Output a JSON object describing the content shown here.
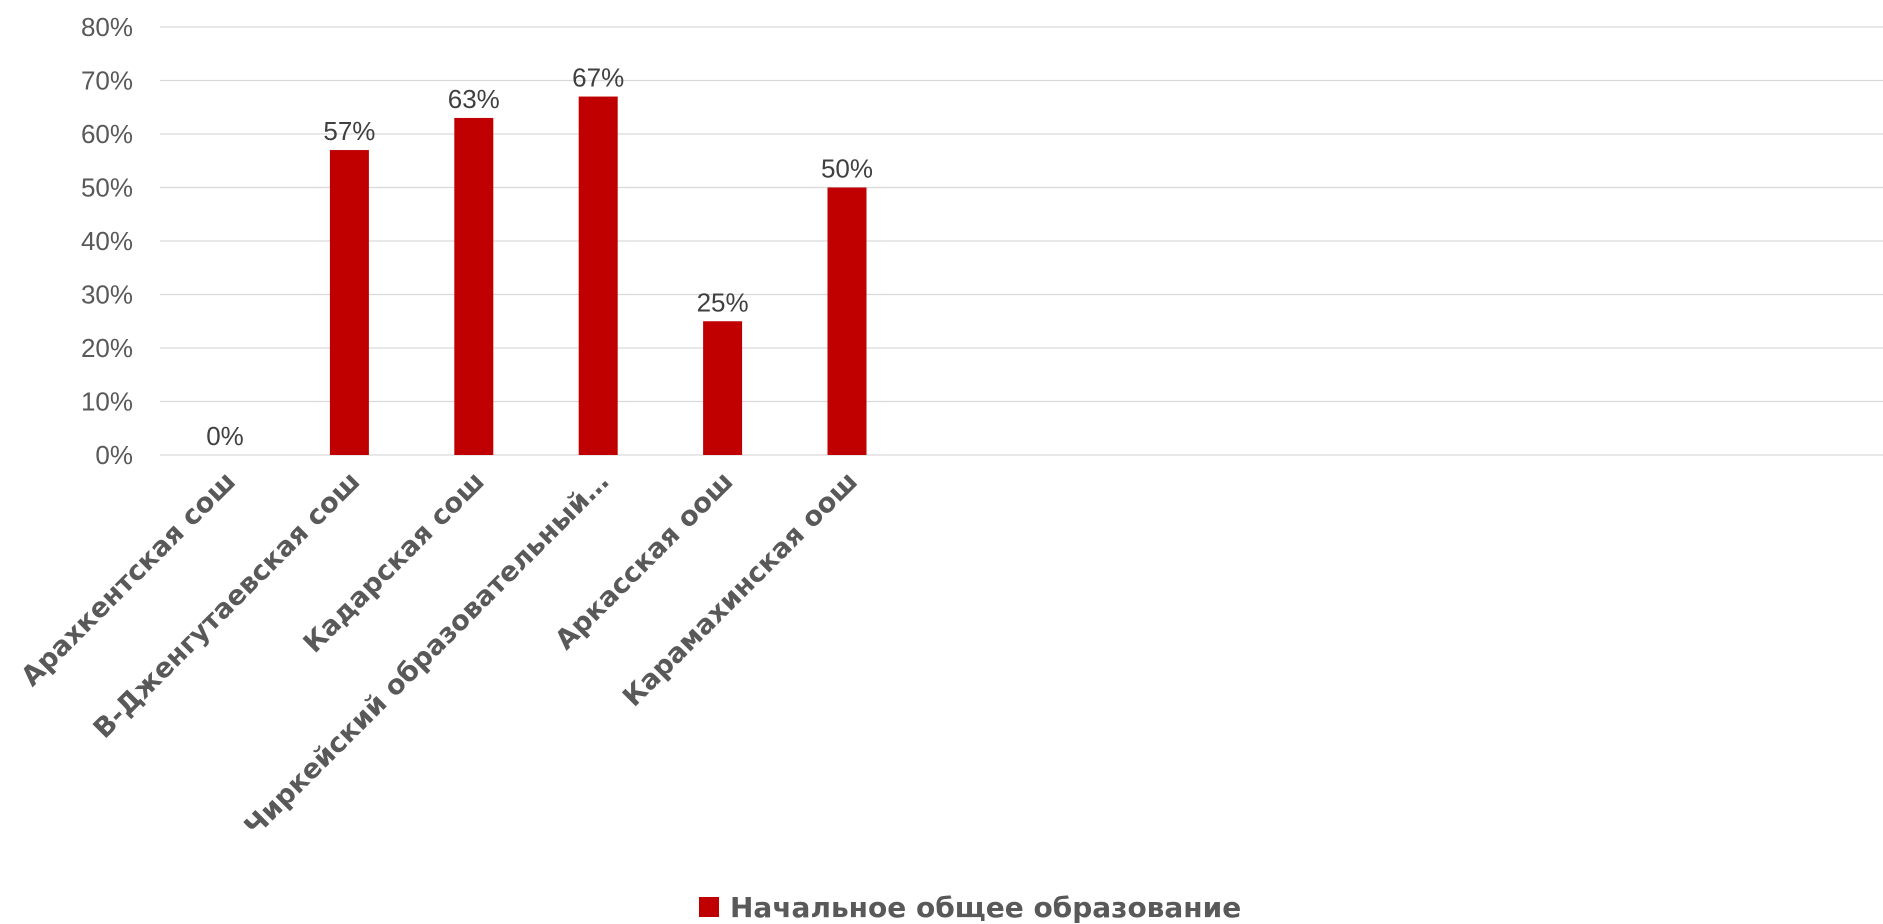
{
  "chart_data": {
    "type": "bar",
    "categories": [
      "Арахкентская сош",
      "В-Дженгутаевская сош",
      "Кадарская сош",
      "Чиркейский образовательный…",
      "Аркасская оош",
      "Карамахинская оош"
    ],
    "series": [
      {
        "name": "Начальное общее образование",
        "values": [
          0,
          57,
          63,
          67,
          25,
          50
        ],
        "color": "#C00000"
      }
    ],
    "data_labels": [
      "0%",
      "57%",
      "63%",
      "67%",
      "25%",
      "50%"
    ],
    "y_ticks": [
      "0%",
      "10%",
      "20%",
      "30%",
      "40%",
      "50%",
      "60%",
      "70%",
      "80%"
    ],
    "ylim": [
      0,
      80
    ],
    "y_unit": "%",
    "title": "",
    "xlabel": "",
    "ylabel": "",
    "grid": true,
    "legend_position": "bottom",
    "colors": {
      "bar": "#C00000",
      "grid": "#D9D9D9",
      "text": "#595959"
    }
  }
}
